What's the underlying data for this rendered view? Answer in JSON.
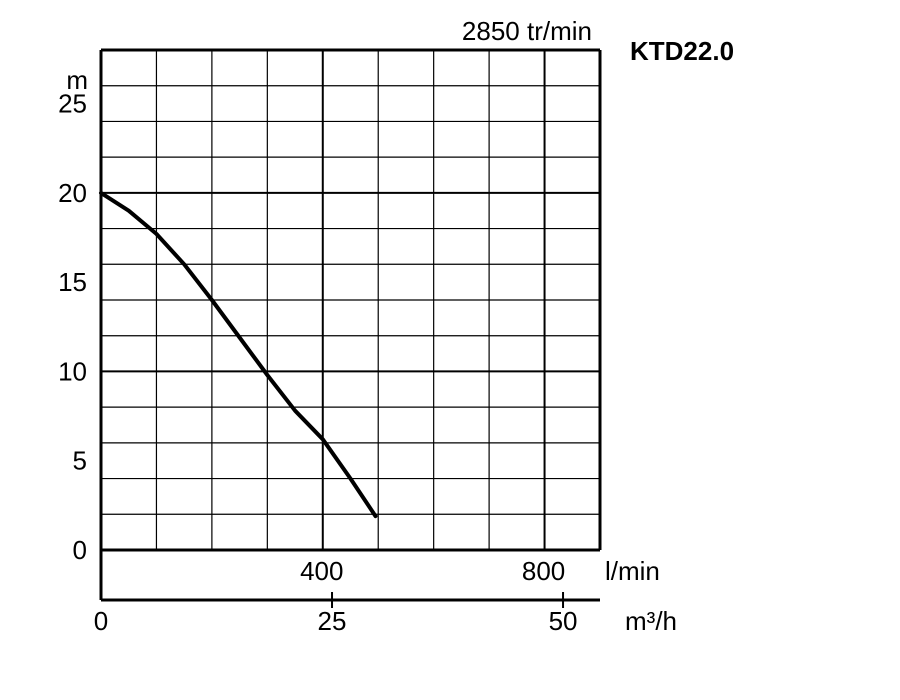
{
  "chart_data": {
    "type": "line",
    "title": "KTD22.0",
    "speed_label": "2850 tr/min",
    "y_axis": {
      "unit": "m",
      "ylim": [
        0,
        28
      ],
      "ticks": [
        0,
        5,
        10,
        15,
        20,
        25
      ],
      "labels": [
        "0",
        "5",
        "10",
        "15",
        "20",
        "25"
      ],
      "grid_step": 2
    },
    "x_axis_lpm": {
      "unit": "l/min",
      "xlim": [
        0,
        900
      ],
      "ticks": [
        400,
        800
      ],
      "labels": [
        "400",
        "800"
      ],
      "grid_step": 100
    },
    "x_axis_m3h": {
      "unit": "m³/h",
      "ticks": [
        0,
        25,
        50
      ],
      "labels": [
        "0",
        "25",
        "50"
      ]
    },
    "grid": true,
    "series": [
      {
        "x": [
          0,
          50,
          100,
          150,
          200,
          250,
          300,
          350,
          400,
          450,
          495
        ],
        "y": [
          20.0,
          19.0,
          17.7,
          16.0,
          14.0,
          11.9,
          9.8,
          7.8,
          6.2,
          4.0,
          1.9
        ]
      }
    ]
  }
}
